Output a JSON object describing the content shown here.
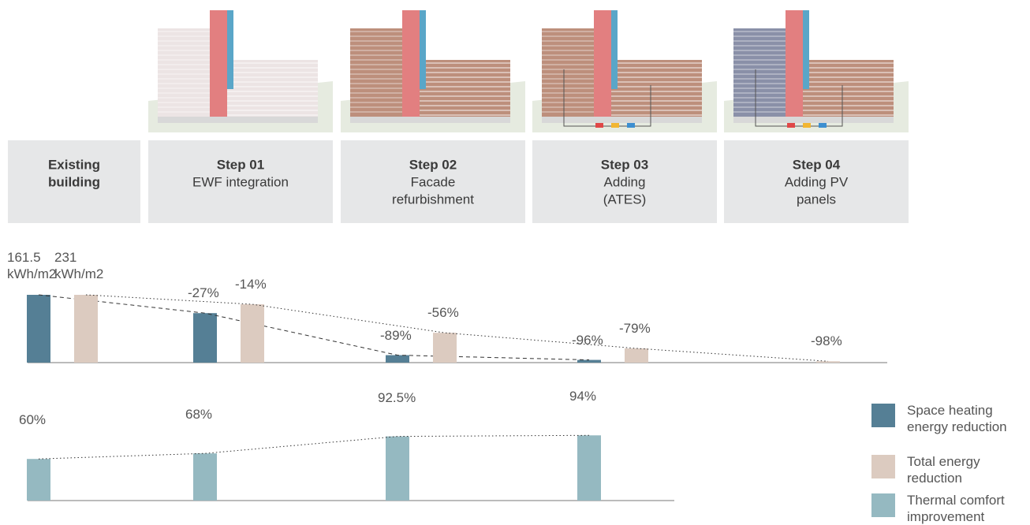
{
  "steps": [
    {
      "title": [
        "Existing",
        "building"
      ]
    },
    {
      "title": [
        "Step 01"
      ],
      "subtitle": [
        "EWF integration"
      ]
    },
    {
      "title": [
        "Step 02"
      ],
      "subtitle": [
        "Facade",
        "refurbishment"
      ]
    },
    {
      "title": [
        "Step 03"
      ],
      "subtitle": [
        "Adding",
        "(ATES)"
      ]
    },
    {
      "title": [
        "Step 04"
      ],
      "subtitle": [
        "Adding PV",
        "panels"
      ]
    }
  ],
  "chart_data": [
    {
      "type": "bar",
      "series": [
        {
          "name": "Space heating energy reduction",
          "color": "#557f95",
          "values": [
            161.5,
            -27,
            -89,
            -96,
            null
          ],
          "value_labels": [
            "161.5 kWh/m2",
            "-27%",
            "-89%",
            "-96%",
            null
          ]
        },
        {
          "name": "Total energy reduction",
          "color": "#dccbc0",
          "values": [
            231,
            -14,
            -56,
            -79,
            -98
          ],
          "value_labels": [
            "231 kWh/m2",
            "-14%",
            "-56%",
            "-79%",
            "-98%"
          ]
        }
      ]
    },
    {
      "type": "bar",
      "series": [
        {
          "name": "Thermal comfort improvement",
          "color": "#95b9c1",
          "values": [
            60,
            68,
            92.5,
            94
          ],
          "value_labels": [
            "60%",
            "68%",
            "92.5%",
            "94%"
          ]
        }
      ]
    }
  ]
}
